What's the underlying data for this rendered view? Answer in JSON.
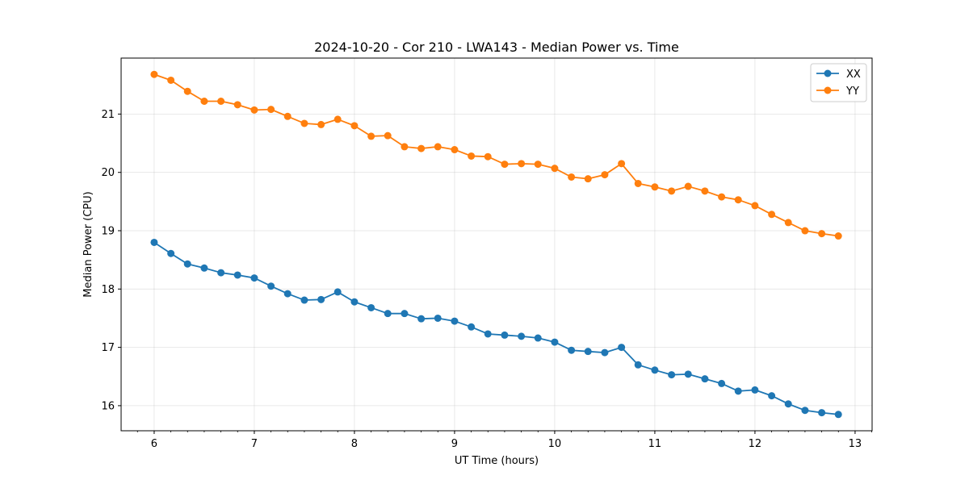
{
  "chart_data": {
    "type": "line",
    "title": "2024-10-20 - Cor 210 - LWA143 - Median Power vs. Time",
    "xlabel": "UT Time (hours)",
    "ylabel": "Median Power (CPU)",
    "xlim": [
      5.67,
      13.17
    ],
    "ylim": [
      15.57,
      21.96
    ],
    "xticks": [
      6,
      7,
      8,
      9,
      10,
      11,
      12,
      13
    ],
    "xtick_labels": [
      "6",
      "7",
      "8",
      "9",
      "10",
      "11",
      "12",
      "13"
    ],
    "yticks": [
      16,
      17,
      18,
      19,
      20,
      21
    ],
    "ytick_labels": [
      "16",
      "17",
      "18",
      "19",
      "20",
      "21"
    ],
    "grid": true,
    "legend_position": "top-right",
    "x": [
      6.0,
      6.167,
      6.333,
      6.5,
      6.667,
      6.833,
      7.0,
      7.167,
      7.333,
      7.5,
      7.667,
      7.833,
      8.0,
      8.167,
      8.333,
      8.5,
      8.667,
      8.833,
      9.0,
      9.167,
      9.333,
      9.5,
      9.667,
      9.833,
      10.0,
      10.167,
      10.333,
      10.5,
      10.667,
      10.833,
      11.0,
      11.167,
      11.333,
      11.5,
      11.667,
      11.833,
      12.0,
      12.167,
      12.333,
      12.5,
      12.667,
      12.833
    ],
    "series": [
      {
        "name": "XX",
        "color": "#1f77b4",
        "values": [
          18.8,
          18.61,
          18.43,
          18.36,
          18.28,
          18.24,
          18.19,
          18.05,
          17.92,
          17.81,
          17.82,
          17.95,
          17.78,
          17.68,
          17.58,
          17.58,
          17.49,
          17.5,
          17.45,
          17.35,
          17.23,
          17.21,
          17.19,
          17.16,
          17.09,
          16.95,
          16.93,
          16.91,
          17.0,
          16.7,
          16.61,
          16.53,
          16.54,
          16.46,
          16.38,
          16.25,
          16.27,
          16.17,
          16.03,
          15.92,
          15.88,
          15.85
        ]
      },
      {
        "name": "YY",
        "color": "#ff7f0e",
        "values": [
          21.68,
          21.58,
          21.39,
          21.22,
          21.22,
          21.16,
          21.07,
          21.08,
          20.96,
          20.84,
          20.82,
          20.91,
          20.8,
          20.62,
          20.63,
          20.44,
          20.41,
          20.44,
          20.39,
          20.28,
          20.27,
          20.14,
          20.15,
          20.14,
          20.07,
          19.92,
          19.89,
          19.96,
          20.15,
          19.81,
          19.75,
          19.68,
          19.76,
          19.68,
          19.58,
          19.53,
          19.43,
          19.28,
          19.14,
          19.0,
          18.95,
          18.91
        ]
      }
    ]
  }
}
